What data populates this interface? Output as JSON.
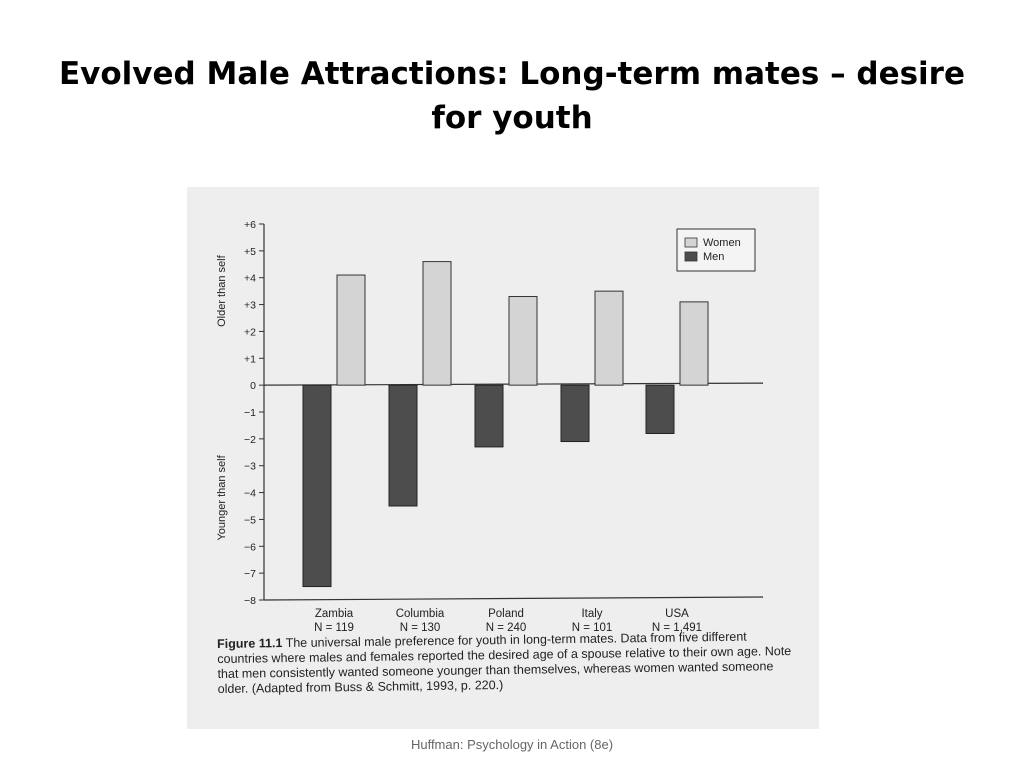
{
  "slide": {
    "title": "Evolved Male Attractions: Long-term mates – desire for youth",
    "footer": "Huffman: Psychology in Action (8e)"
  },
  "figure": {
    "label": "Figure 11.1",
    "caption": "The universal male preference for youth in long-term mates. Data from five different countries where males and females reported the desired age of a spouse relative to their own age. Note that men consistently wanted someone younger than themselves, whereas women wanted someone older.  (Adapted from Buss & Schmitt, 1993, p. 220.)"
  },
  "chart_data": {
    "type": "bar",
    "categories": [
      "Zambia",
      "Columbia",
      "Poland",
      "Italy",
      "USA"
    ],
    "sample_sizes": [
      "N = 119",
      "N = 130",
      "N = 240",
      "N = 101",
      "N = 1,491"
    ],
    "series": [
      {
        "name": "Women",
        "values": [
          4.1,
          4.6,
          3.3,
          3.5,
          3.1
        ],
        "color": "#d4d4d4"
      },
      {
        "name": "Men",
        "values": [
          -7.5,
          -4.5,
          -2.3,
          -2.1,
          -1.8
        ],
        "color": "#4d4d4d"
      }
    ],
    "ylim": [
      -8,
      6
    ],
    "yticks": [
      "+6",
      "+5",
      "+4",
      "+3",
      "+2",
      "+1",
      "0",
      "−1",
      "−2",
      "−3",
      "−4",
      "−5",
      "−6",
      "−7",
      "−8"
    ],
    "ylabel_upper": "Older than self",
    "ylabel_lower": "Younger than self",
    "legend_position": "top-right",
    "grid": false
  }
}
